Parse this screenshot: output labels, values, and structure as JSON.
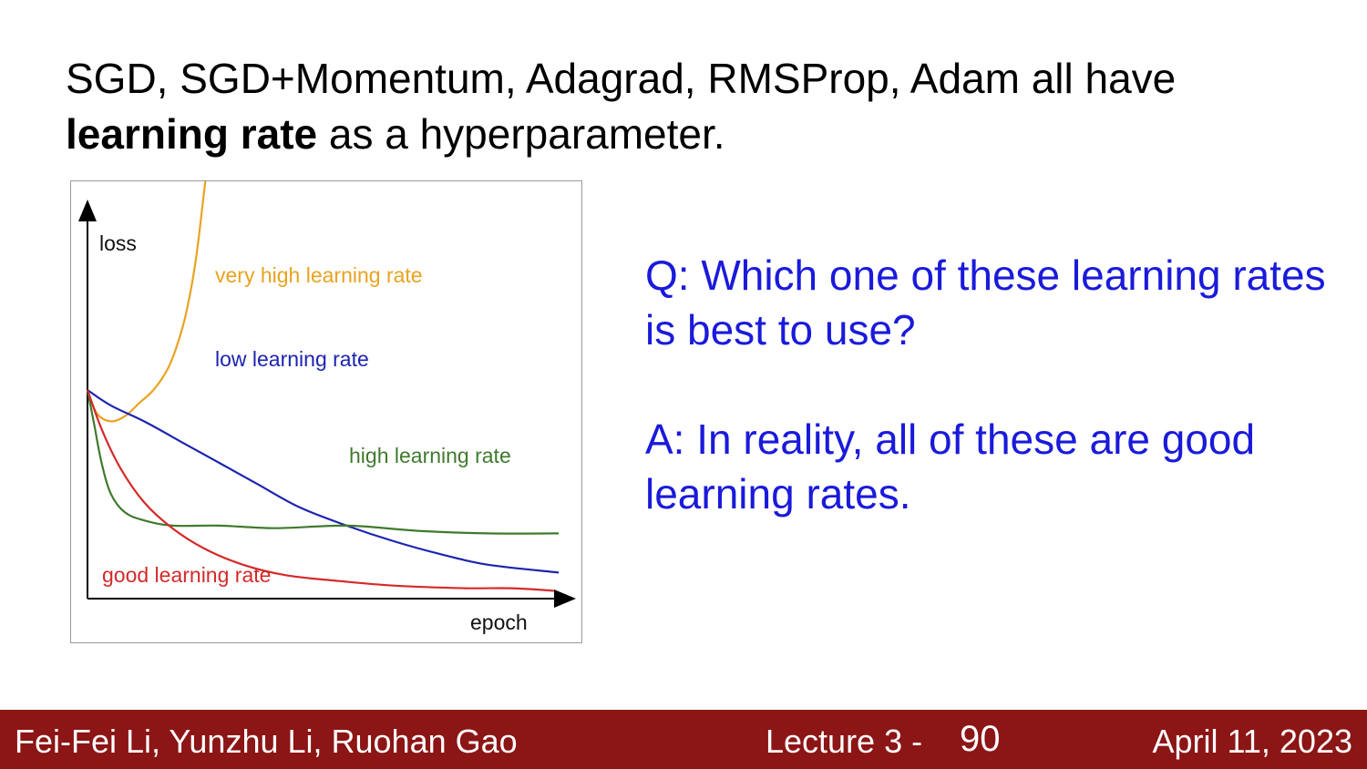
{
  "slide": {
    "title_part1": "SGD, SGD+Momentum, Adagrad, RMSProp, Adam all have",
    "title_bold": "learning rate",
    "title_part2": " as a hyperparameter."
  },
  "chart_data": {
    "type": "line",
    "xlabel": "epoch",
    "ylabel": "loss",
    "grid": false,
    "legend": "inline labels",
    "series": [
      {
        "name": "very high learning rate",
        "color": "#e8a321",
        "x": [
          0,
          0.02,
          0.05,
          0.08,
          0.11,
          0.14,
          0.17,
          0.19,
          0.21,
          0.23,
          0.25
        ],
        "y": [
          0.8,
          0.71,
          0.68,
          0.7,
          0.75,
          0.8,
          0.88,
          0.97,
          1.1,
          1.3,
          1.6
        ]
      },
      {
        "name": "low learning rate",
        "color": "#1c24b0",
        "x": [
          0,
          0.05,
          0.12,
          0.2,
          0.28,
          0.36,
          0.45,
          0.55,
          0.65,
          0.75,
          0.85,
          1.0
        ],
        "y": [
          0.8,
          0.74,
          0.68,
          0.6,
          0.52,
          0.44,
          0.35,
          0.28,
          0.22,
          0.17,
          0.13,
          0.1
        ]
      },
      {
        "name": "high learning rate",
        "color": "#3f7a2e",
        "x": [
          0,
          0.015,
          0.03,
          0.05,
          0.08,
          0.12,
          0.18,
          0.28,
          0.4,
          0.55,
          0.7,
          0.85,
          1.0
        ],
        "y": [
          0.8,
          0.66,
          0.52,
          0.4,
          0.33,
          0.3,
          0.28,
          0.28,
          0.27,
          0.28,
          0.26,
          0.25,
          0.25
        ]
      },
      {
        "name": "good learning rate",
        "color": "#d42a2a",
        "x": [
          0,
          0.03,
          0.07,
          0.12,
          0.18,
          0.25,
          0.33,
          0.42,
          0.52,
          0.65,
          0.8,
          0.9,
          0.99
        ],
        "y": [
          0.8,
          0.65,
          0.5,
          0.37,
          0.27,
          0.19,
          0.13,
          0.09,
          0.07,
          0.05,
          0.04,
          0.04,
          0.03
        ]
      }
    ]
  },
  "qa": {
    "question": "Q: Which one of these learning rates is best to use?",
    "answer": "A: In reality, all of these are good learning rates."
  },
  "footer": {
    "authors": "Fei-Fei Li, Yunzhu Li, Ruohan Gao",
    "lecture": "Lecture 3 -",
    "page": "90",
    "date": "April 11, 2023"
  },
  "colors": {
    "footer_bg": "#8c1515",
    "qa_text": "#1a1adb"
  }
}
